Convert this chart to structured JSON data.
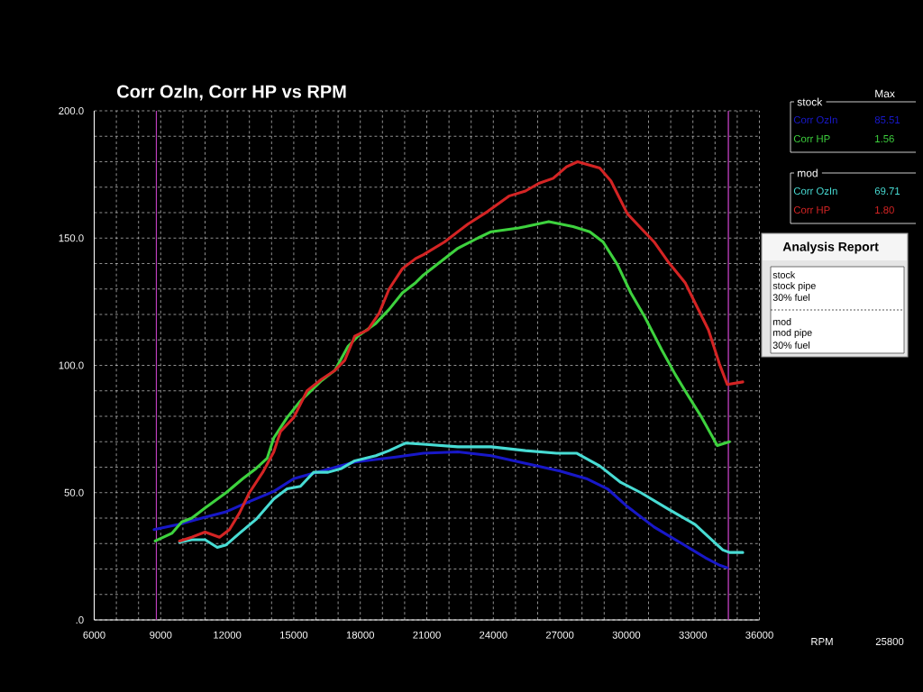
{
  "chart_data": {
    "type": "line",
    "title": "Corr OzIn, Corr HP vs RPM",
    "xlabel": "RPM",
    "xlim": [
      6000,
      36000
    ],
    "ylim": [
      0,
      200
    ],
    "xticks": [
      6000,
      {
        "value": 7000,
        "label": null
      },
      {
        "value": 8000,
        "label": null
      },
      9000,
      {
        "value": 10000,
        "label": null
      },
      {
        "value": 11000,
        "label": null
      },
      12000,
      {
        "value": 13000,
        "label": null
      },
      {
        "value": 14000,
        "label": null
      },
      15000,
      {
        "value": 16000,
        "label": null
      },
      {
        "value": 17000,
        "label": null
      },
      18000,
      {
        "value": 19000,
        "label": null
      },
      {
        "value": 20000,
        "label": null
      },
      21000,
      {
        "value": 22000,
        "label": null
      },
      {
        "value": 23000,
        "label": null
      },
      24000,
      {
        "value": 25000,
        "label": null
      },
      {
        "value": 26000,
        "label": null
      },
      27000,
      {
        "value": 28000,
        "label": null
      },
      {
        "value": 29000,
        "label": null
      },
      30000,
      {
        "value": 31000,
        "label": null
      },
      {
        "value": 32000,
        "label": null
      },
      33000,
      {
        "value": 34000,
        "label": null
      },
      {
        "value": 35000,
        "label": null
      },
      36000
    ],
    "yticks": [
      {
        "value": 0,
        "label": ".0"
      },
      {
        "value": 10,
        "label": null
      },
      {
        "value": 20,
        "label": null
      },
      {
        "value": 30,
        "label": null
      },
      {
        "value": 40,
        "label": null
      },
      {
        "value": 50,
        "label": "50.0"
      },
      {
        "value": 60,
        "label": null
      },
      {
        "value": 70,
        "label": null
      },
      {
        "value": 80,
        "label": null
      },
      {
        "value": 90,
        "label": null
      },
      {
        "value": 100,
        "label": "100.0"
      },
      {
        "value": 110,
        "label": null
      },
      {
        "value": 120,
        "label": null
      },
      {
        "value": 130,
        "label": null
      },
      {
        "value": 140,
        "label": null
      },
      {
        "value": 150,
        "label": "150.0"
      },
      {
        "value": 160,
        "label": null
      },
      {
        "value": 170,
        "label": null
      },
      {
        "value": 180,
        "label": null
      },
      {
        "value": 190,
        "label": null
      },
      {
        "value": 200,
        "label": "200.0"
      }
    ],
    "grid": true,
    "legend": "right",
    "series": [
      {
        "name": "Corr OzIn",
        "color": "#1818c8",
        "x": [
          8700,
          9800,
          10850,
          11950,
          13000,
          14100,
          15000,
          16250,
          17750,
          19600,
          20850,
          22400,
          23900,
          25450,
          27000,
          28200,
          29150,
          30050,
          31250,
          32500,
          33550,
          34200,
          34550
        ],
        "values": [
          35.5,
          37.5,
          40,
          42.5,
          46.5,
          50.5,
          55.5,
          58.5,
          62,
          64,
          65.5,
          66,
          64.5,
          61.5,
          58.5,
          55.5,
          51.5,
          44.5,
          36.5,
          30,
          24.5,
          21.5,
          20.5
        ]
      },
      {
        "name": "Corr HP",
        "color": "#3ed23e",
        "x": [
          8750,
          9500,
          9950,
          10400,
          11000,
          11950,
          12700,
          13300,
          13800,
          14100,
          14700,
          15300,
          16250,
          16850,
          17450,
          17900,
          18700,
          19300,
          19900,
          20500,
          20850,
          22400,
          23300,
          23900,
          25150,
          25450,
          26500,
          27600,
          28350,
          28950,
          29600,
          30200,
          30800,
          31600,
          32200,
          32650,
          33400,
          34100,
          34650
        ],
        "values": [
          31,
          34,
          38.5,
          40,
          44,
          50,
          55.5,
          59.5,
          63.5,
          71.5,
          79.5,
          86,
          94,
          98,
          107.5,
          111.5,
          116.5,
          122,
          128.5,
          132.5,
          135.5,
          146,
          150,
          152.5,
          154,
          154.5,
          156.5,
          154.5,
          152.5,
          148.5,
          139.5,
          128.5,
          119.5,
          106,
          96.5,
          90,
          79.5,
          68.5,
          70
        ]
      },
      {
        "name": "Corr OzIn",
        "color": "#48dcd4",
        "x": [
          9850,
          10400,
          11000,
          11550,
          11950,
          12550,
          13300,
          14100,
          14700,
          15300,
          15900,
          16550,
          17150,
          17750,
          18700,
          19300,
          20050,
          20850,
          22400,
          23900,
          25450,
          26850,
          27750,
          28800,
          29750,
          30650,
          31900,
          33100,
          33850,
          34350,
          34650,
          35250
        ],
        "values": [
          30.5,
          31.5,
          31.5,
          28.5,
          29.5,
          34,
          39.5,
          47.5,
          51.5,
          52.5,
          58,
          58,
          59.5,
          62.5,
          64.5,
          66.5,
          69.5,
          69,
          68,
          68,
          66.5,
          65.5,
          65.5,
          60.5,
          54,
          50,
          43.5,
          37.5,
          31.5,
          27.5,
          26.5,
          26.5
        ]
      },
      {
        "name": "Corr HP",
        "color": "#d42424",
        "x": [
          9850,
          10400,
          11000,
          11650,
          12100,
          12550,
          13000,
          13600,
          14100,
          14400,
          15000,
          15600,
          16250,
          16850,
          17300,
          17750,
          18350,
          18850,
          19300,
          19900,
          20500,
          20850,
          21800,
          22850,
          23750,
          24700,
          25450,
          26050,
          26700,
          27300,
          27800,
          28800,
          29300,
          30050,
          30650,
          31250,
          31900,
          32650,
          33100,
          33700,
          34200,
          34550,
          35250
        ],
        "values": [
          31,
          32.5,
          34.5,
          32.5,
          35.5,
          42,
          50,
          58,
          66,
          74,
          79.5,
          90,
          94.5,
          98,
          102,
          111.5,
          114,
          120.5,
          130,
          138,
          142,
          143.5,
          148.5,
          155.5,
          160.5,
          166.5,
          168.5,
          171.5,
          173.5,
          178,
          180,
          177.5,
          172.5,
          159.5,
          154,
          148.5,
          140.5,
          132.5,
          124.5,
          114,
          100.5,
          92.5,
          93.5
        ]
      }
    ],
    "ref_lines": [
      {
        "axis": "x",
        "value": 8800,
        "color": "#c040c0"
      },
      {
        "axis": "x",
        "value": 34600,
        "color": "#c040c0"
      }
    ],
    "annotations": [
      "Max",
      "stock",
      "85.51",
      "1.56",
      "mod",
      "69.71",
      "1.80",
      "Analysis Report",
      "stock",
      "stock pipe",
      "30% fuel",
      "mod",
      "mod pipe",
      "30% fuel",
      "25800"
    ]
  }
}
